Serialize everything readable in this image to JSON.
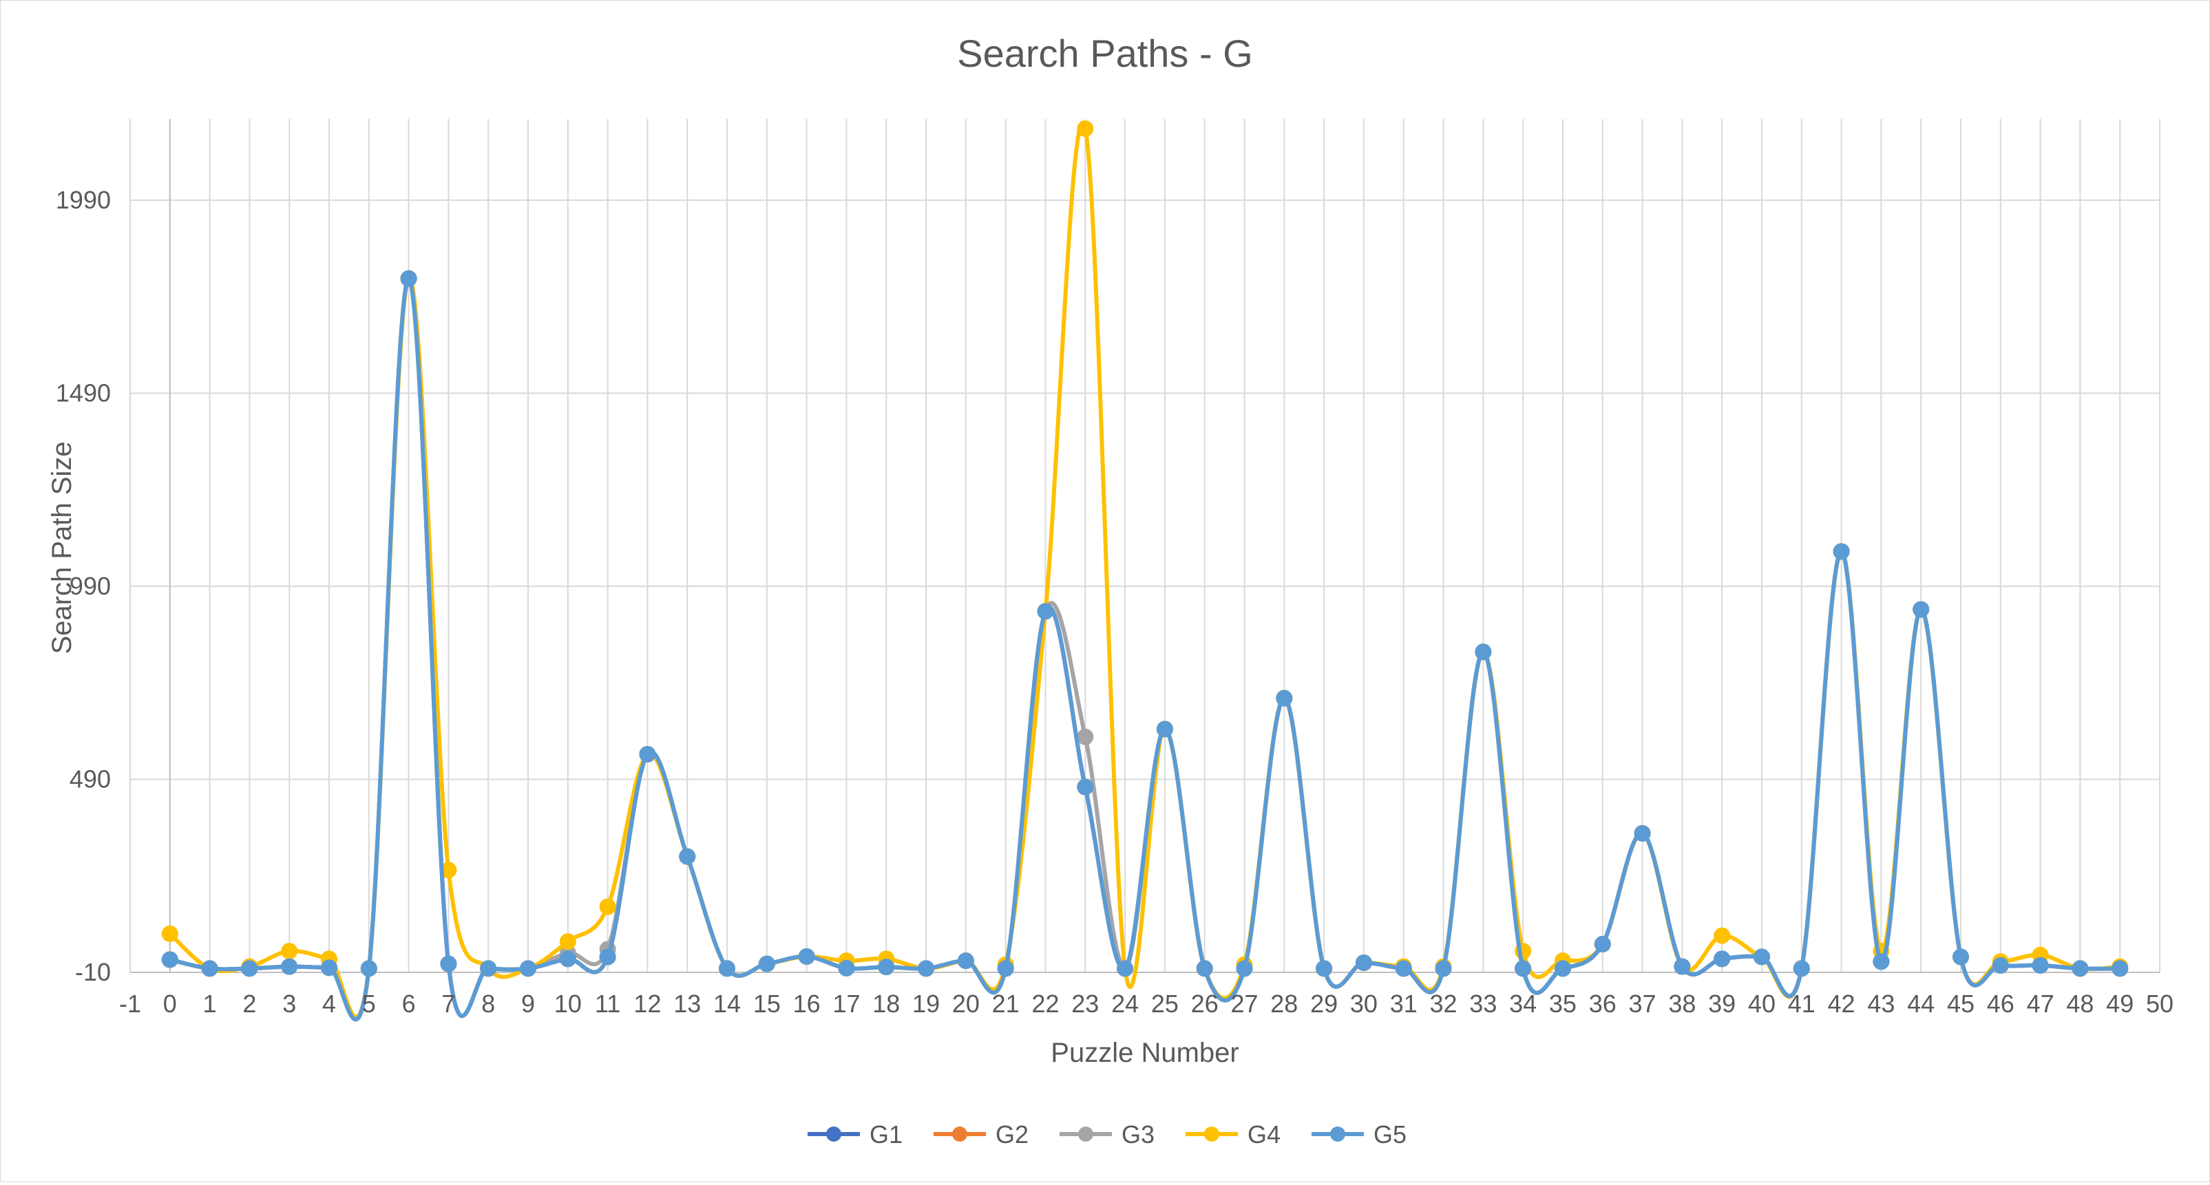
{
  "chart_data": {
    "type": "line",
    "title": "Search Paths - G",
    "xlabel": "Puzzle Number",
    "ylabel": "Search Path Size",
    "xlim": [
      -1,
      50
    ],
    "ylim": [
      -10,
      2200
    ],
    "x_ticks": [
      -1,
      0,
      1,
      2,
      3,
      4,
      5,
      6,
      7,
      8,
      9,
      10,
      11,
      12,
      13,
      14,
      15,
      16,
      17,
      18,
      19,
      20,
      21,
      22,
      23,
      24,
      25,
      26,
      27,
      28,
      29,
      30,
      31,
      32,
      33,
      34,
      35,
      36,
      37,
      38,
      39,
      40,
      41,
      42,
      43,
      44,
      45,
      46,
      47,
      48,
      49,
      50
    ],
    "y_ticks": [
      -10,
      490,
      990,
      1490,
      1990
    ],
    "grid": true,
    "smooth": true,
    "legend_position": "bottom",
    "x": [
      0,
      1,
      2,
      3,
      4,
      5,
      6,
      7,
      8,
      9,
      10,
      11,
      12,
      13,
      14,
      15,
      16,
      17,
      18,
      19,
      20,
      21,
      22,
      23,
      24,
      25,
      26,
      27,
      28,
      29,
      30,
      31,
      32,
      33,
      34,
      35,
      36,
      37,
      38,
      39,
      40,
      41,
      42,
      43,
      44,
      45,
      46,
      47,
      48,
      49
    ],
    "series": [
      {
        "name": "G1",
        "color": "#4472C4",
        "values": [
          23,
          0,
          0,
          5,
          2,
          0,
          1787,
          12,
          0,
          0,
          25,
          30,
          555,
          290,
          0,
          12,
          31,
          1,
          4,
          0,
          20,
          0,
          925,
          470,
          0,
          620,
          0,
          0,
          700,
          0,
          15,
          0,
          0,
          820,
          0,
          0,
          63,
          350,
          5,
          25,
          30,
          0,
          1080,
          18,
          930,
          30,
          8,
          8,
          0,
          0
        ]
      },
      {
        "name": "G2",
        "color": "#ED7D31",
        "values": [
          23,
          0,
          0,
          5,
          2,
          0,
          1787,
          12,
          0,
          0,
          25,
          30,
          555,
          290,
          0,
          12,
          31,
          1,
          4,
          0,
          20,
          0,
          925,
          470,
          0,
          620,
          0,
          0,
          700,
          0,
          15,
          0,
          0,
          820,
          0,
          0,
          63,
          350,
          5,
          25,
          30,
          0,
          1080,
          18,
          930,
          30,
          8,
          8,
          0,
          0
        ]
      },
      {
        "name": "G3",
        "color": "#A5A5A5",
        "values": [
          23,
          0,
          0,
          5,
          2,
          0,
          1787,
          12,
          0,
          0,
          40,
          50,
          555,
          290,
          0,
          12,
          31,
          1,
          4,
          0,
          20,
          0,
          925,
          600,
          0,
          620,
          0,
          0,
          700,
          0,
          15,
          0,
          0,
          820,
          0,
          0,
          63,
          350,
          5,
          25,
          30,
          0,
          1080,
          18,
          930,
          30,
          8,
          8,
          0,
          0
        ]
      },
      {
        "name": "G4",
        "color": "#FFC000",
        "values": [
          90,
          0,
          5,
          45,
          25,
          0,
          1787,
          255,
          0,
          0,
          70,
          160,
          555,
          290,
          0,
          12,
          31,
          20,
          25,
          0,
          20,
          10,
          925,
          2175,
          0,
          620,
          0,
          10,
          700,
          0,
          15,
          5,
          5,
          820,
          45,
          20,
          63,
          350,
          5,
          85,
          30,
          0,
          1080,
          45,
          930,
          30,
          18,
          35,
          0,
          5
        ]
      },
      {
        "name": "G5",
        "color": "#5B9BD5",
        "values": [
          23,
          0,
          0,
          5,
          2,
          0,
          1787,
          12,
          0,
          0,
          25,
          30,
          555,
          290,
          0,
          12,
          31,
          1,
          4,
          0,
          20,
          0,
          925,
          470,
          0,
          620,
          0,
          0,
          700,
          0,
          15,
          0,
          0,
          820,
          0,
          0,
          63,
          350,
          5,
          25,
          30,
          0,
          1080,
          18,
          930,
          30,
          8,
          8,
          0,
          0
        ]
      }
    ]
  }
}
